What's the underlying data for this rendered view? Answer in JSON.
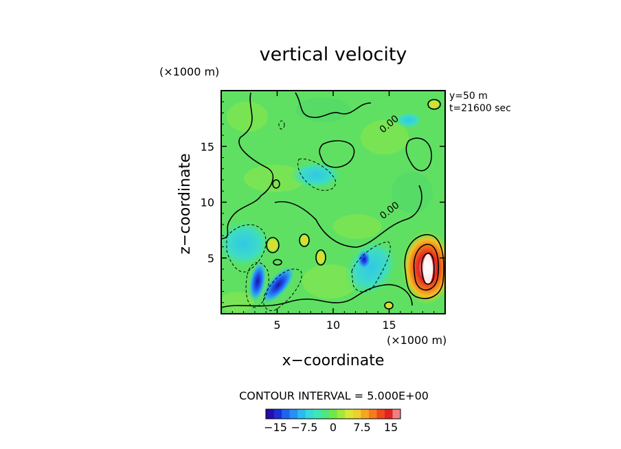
{
  "chart_data": {
    "type": "contour",
    "title": "vertical velocity",
    "xlabel": "x−coordinate",
    "ylabel": "z−coordinate",
    "x_unit": "(×1000 m)",
    "y_unit": "(×1000 m)",
    "xlim": [
      0,
      20
    ],
    "ylim": [
      0,
      20
    ],
    "x_ticks": [
      5,
      10,
      15
    ],
    "y_ticks": [
      5,
      10,
      15
    ],
    "x_tick_labels": [
      "5",
      "10",
      "15"
    ],
    "y_tick_labels": [
      "5",
      "10",
      "15"
    ],
    "info_lines": [
      "y=50  m",
      "t=21600 sec"
    ],
    "contour_interval_text": "CONTOUR INTERVAL = 5.000E+00",
    "contour_labels": [
      {
        "text": "0.00",
        "x": 14.8,
        "z": 17.5
      },
      {
        "text": "0.00",
        "x": 15.0,
        "z": 9.8
      }
    ],
    "features": [
      {
        "kind": "updraft",
        "x": 18.6,
        "z": 4.3,
        "peak": 17
      },
      {
        "kind": "downdraft",
        "x": 3.6,
        "z": 2.8,
        "peak": -15
      },
      {
        "kind": "downdraft",
        "x": 4.5,
        "z": 2.0,
        "peak": -14
      },
      {
        "kind": "downdraft",
        "x": 12.8,
        "z": 4.8,
        "peak": -10
      },
      {
        "kind": "weak-updraft",
        "x": 4.7,
        "z": 6.0,
        "peak": 5
      },
      {
        "kind": "weak-updraft",
        "x": 7.3,
        "z": 6.4,
        "peak": 4
      },
      {
        "kind": "weak-downdraft",
        "x": 8.2,
        "z": 13.2,
        "peak": -5
      },
      {
        "kind": "weak-downdraft",
        "x": 1.8,
        "z": 6.5,
        "peak": -6
      }
    ],
    "colorbar": {
      "colors": [
        "#2a0aa8",
        "#1a2fd6",
        "#1f64f0",
        "#2590f5",
        "#2cb8f0",
        "#34d9d9",
        "#3fe6b8",
        "#4ee87c",
        "#6fe84a",
        "#a6e83a",
        "#d8e834",
        "#f0d02a",
        "#f5a623",
        "#f57c1c",
        "#ef4a1a",
        "#e02424",
        "#f08080"
      ],
      "tick_labels": [
        "−15",
        "−7.5",
        "0",
        "7.5",
        "15"
      ],
      "tick_values": [
        -15,
        -7.5,
        0,
        7.5,
        15
      ],
      "range": [
        -17.5,
        17.5
      ]
    }
  }
}
